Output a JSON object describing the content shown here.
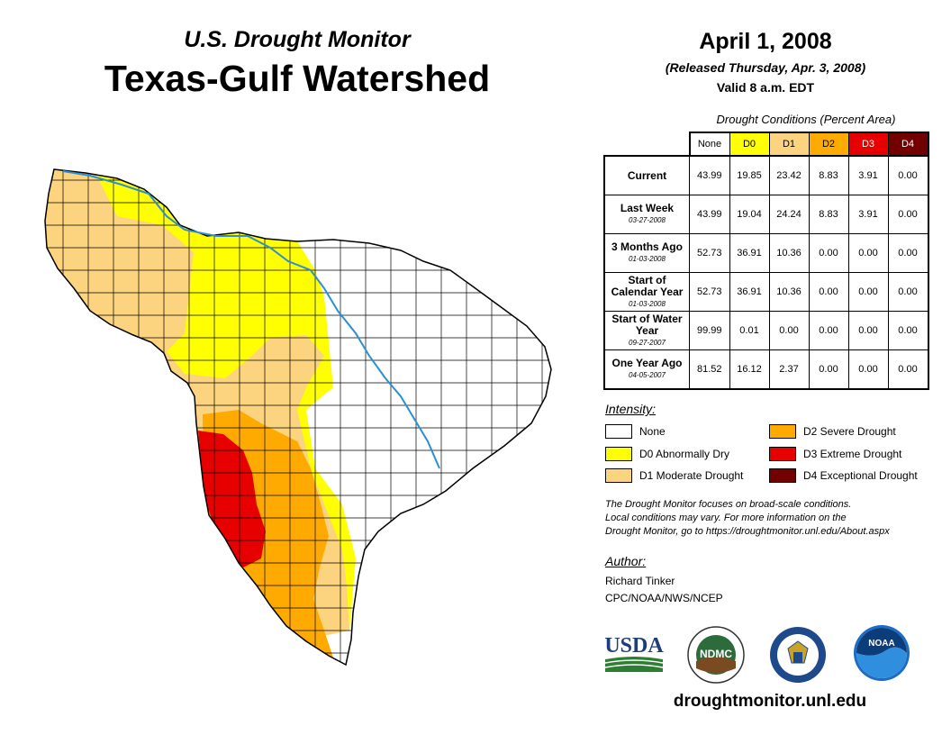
{
  "header": {
    "subtitle": "U.S. Drought Monitor",
    "title": "Texas-Gulf Watershed",
    "date": "April 1, 2008",
    "released": "(Released Thursday, Apr. 3, 2008)",
    "valid": "Valid 8 a.m. EDT"
  },
  "table": {
    "caption": "Drought Conditions (Percent Area)",
    "columns": [
      "None",
      "D0",
      "D1",
      "D2",
      "D3",
      "D4"
    ],
    "rows": [
      {
        "label": "Current",
        "sublabel": "",
        "values": [
          "43.99",
          "19.85",
          "23.42",
          "8.83",
          "3.91",
          "0.00"
        ]
      },
      {
        "label": "Last Week",
        "sublabel": "03-27-2008",
        "values": [
          "43.99",
          "19.04",
          "24.24",
          "8.83",
          "3.91",
          "0.00"
        ]
      },
      {
        "label": "3 Months Ago",
        "sublabel": "01-03-2008",
        "values": [
          "52.73",
          "36.91",
          "10.36",
          "0.00",
          "0.00",
          "0.00"
        ]
      },
      {
        "label": "Start of Calendar Year",
        "sublabel": "01-03-2008",
        "values": [
          "52.73",
          "36.91",
          "10.36",
          "0.00",
          "0.00",
          "0.00"
        ]
      },
      {
        "label": "Start of Water Year",
        "sublabel": "09-27-2007",
        "values": [
          "99.99",
          "0.01",
          "0.00",
          "0.00",
          "0.00",
          "0.00"
        ]
      },
      {
        "label": "One Year Ago",
        "sublabel": "04-05-2007",
        "values": [
          "81.52",
          "16.12",
          "2.37",
          "0.00",
          "0.00",
          "0.00"
        ]
      }
    ]
  },
  "legend": {
    "title": "Intensity:",
    "items": [
      {
        "label": "None",
        "color": "#ffffff"
      },
      {
        "label": "D0 Abnormally Dry",
        "color": "#ffff00"
      },
      {
        "label": "D1 Moderate Drought",
        "color": "#fcd37f"
      },
      {
        "label": "D2 Severe Drought",
        "color": "#ffaa00"
      },
      {
        "label": "D3 Extreme Drought",
        "color": "#e60000"
      },
      {
        "label": "D4 Exceptional Drought",
        "color": "#730000"
      }
    ]
  },
  "note": {
    "line1": "The Drought Monitor focuses on broad-scale conditions.",
    "line2": "Local conditions may vary. For more information on the",
    "line3": "Drought Monitor, go to https://droughtmonitor.unl.edu/About.aspx"
  },
  "author": {
    "title": "Author:",
    "name": "Richard Tinker",
    "org": "CPC/NOAA/NWS/NCEP"
  },
  "logos": {
    "usda": "USDA",
    "ndmc": "NDMC",
    "noaa": "NOAA"
  },
  "site": "droughtmonitor.unl.edu",
  "colors": {
    "river": "#2b8fd6",
    "county_line": "#000000"
  }
}
